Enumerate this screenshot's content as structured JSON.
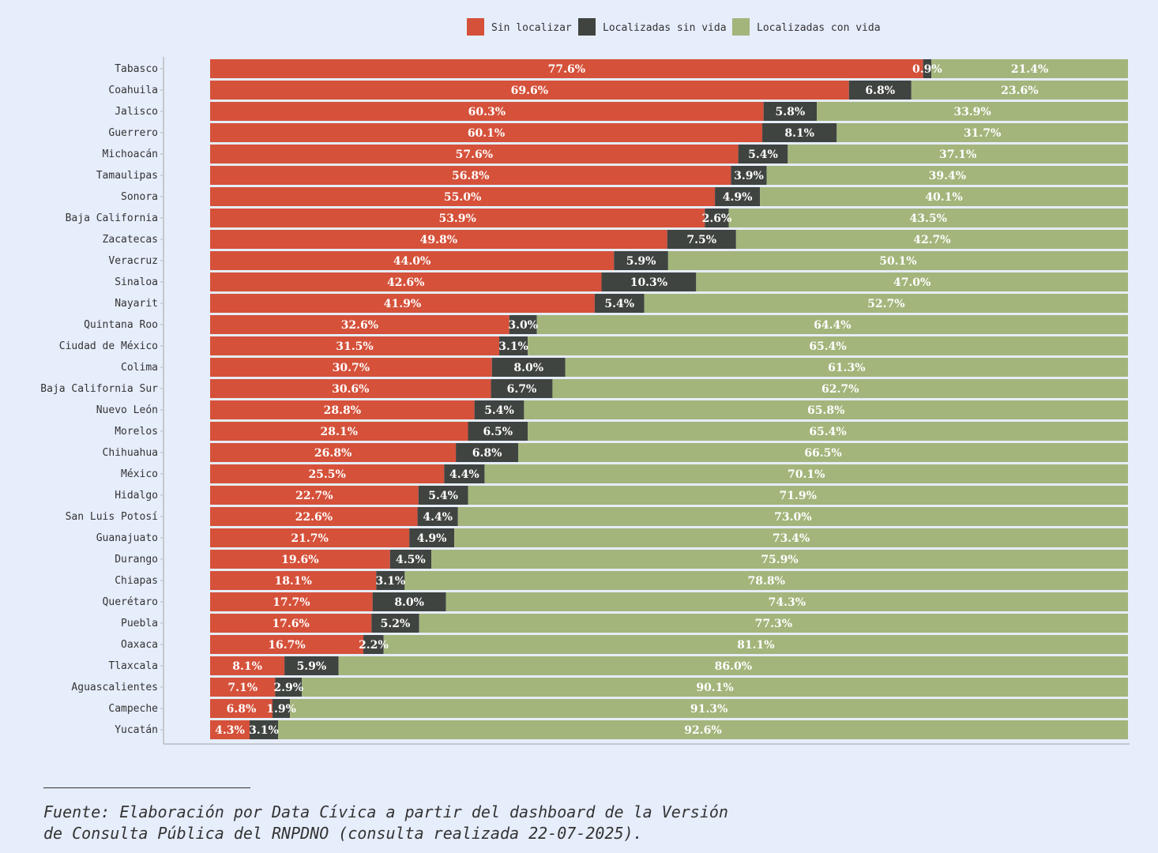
{
  "colors": {
    "background": "#e6edfb",
    "sin_localizar": "#d5513a",
    "localizadas_sin_vida": "#404441",
    "localizadas_con_vida": "#a3b57b"
  },
  "chart_data": {
    "type": "bar",
    "orientation": "horizontal",
    "stacked": true,
    "normalized_percent": true,
    "legend_position": "top-right",
    "categories": [
      "Tabasco",
      "Coahuila",
      "Jalisco",
      "Guerrero",
      "Michoacán",
      "Tamaulipas",
      "Sonora",
      "Baja California",
      "Zacatecas",
      "Veracruz",
      "Sinaloa",
      "Nayarit",
      "Quintana Roo",
      "Ciudad de México",
      "Colima",
      "Baja California Sur",
      "Nuevo León",
      "Morelos",
      "Chihuahua",
      "México",
      "Hidalgo",
      "San Luis Potosí",
      "Guanajuato",
      "Durango",
      "Chiapas",
      "Querétaro",
      "Puebla",
      "Oaxaca",
      "Tlaxcala",
      "Aguascalientes",
      "Campeche",
      "Yucatán"
    ],
    "series": [
      {
        "name": "Sin localizar",
        "color": "#d5513a",
        "values": [
          77.6,
          69.6,
          60.3,
          60.1,
          57.6,
          56.8,
          55.0,
          53.9,
          49.8,
          44.0,
          42.6,
          41.9,
          32.6,
          31.5,
          30.7,
          30.6,
          28.8,
          28.1,
          26.8,
          25.5,
          22.7,
          22.6,
          21.7,
          19.6,
          18.1,
          17.7,
          17.6,
          16.7,
          8.1,
          7.1,
          6.8,
          4.3
        ]
      },
      {
        "name": "Localizadas sin vida",
        "color": "#404441",
        "values": [
          0.9,
          6.8,
          5.8,
          8.1,
          5.4,
          3.9,
          4.9,
          2.6,
          7.5,
          5.9,
          10.3,
          5.4,
          3.0,
          3.1,
          8.0,
          6.7,
          5.4,
          6.5,
          6.8,
          4.4,
          5.4,
          4.4,
          4.9,
          4.5,
          3.1,
          8.0,
          5.2,
          2.2,
          5.9,
          2.9,
          1.9,
          3.1
        ]
      },
      {
        "name": "Localizadas con vida",
        "color": "#a3b57b",
        "values": [
          21.4,
          23.6,
          33.9,
          31.7,
          37.1,
          39.4,
          40.1,
          43.5,
          42.7,
          50.1,
          47.0,
          52.7,
          64.4,
          65.4,
          61.3,
          62.7,
          65.8,
          65.4,
          66.5,
          70.1,
          71.9,
          73.0,
          73.4,
          75.9,
          78.8,
          74.3,
          77.3,
          81.1,
          86.0,
          90.1,
          91.3,
          92.6
        ]
      }
    ],
    "xlim": [
      0,
      100
    ],
    "value_format": "{v}%"
  },
  "source": {
    "line1": "Fuente: Elaboración por Data Cívica a partir del dashboard de la Versión",
    "line2": "de Consulta Pública del RNPDNO (consulta realizada 22-07-2025)."
  }
}
